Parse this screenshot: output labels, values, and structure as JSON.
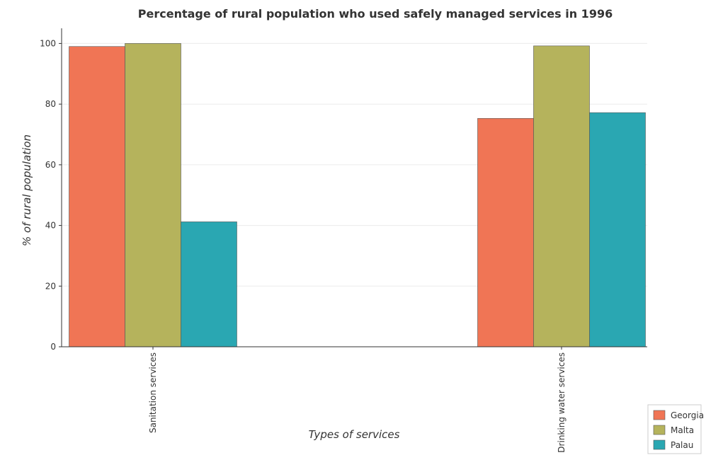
{
  "chart_data": {
    "type": "bar",
    "title": "Percentage of rural population who used safely managed services in 1996",
    "xlabel": "Types of services",
    "ylabel": "% of rural population",
    "categories": [
      "Sanitation services",
      "Drinking water services"
    ],
    "series": [
      {
        "name": "Georgia",
        "color": "#f07555",
        "values": [
          99.0,
          75.3
        ]
      },
      {
        "name": "Malta",
        "color": "#b5b35c",
        "values": [
          100.0,
          99.2
        ]
      },
      {
        "name": "Palau",
        "color": "#2aa7b2",
        "values": [
          41.2,
          77.2
        ]
      }
    ],
    "ylim": [
      0,
      105
    ],
    "yticks": [
      0,
      20,
      40,
      60,
      80,
      100
    ],
    "grid": true,
    "legend_position": "bottom-right"
  }
}
